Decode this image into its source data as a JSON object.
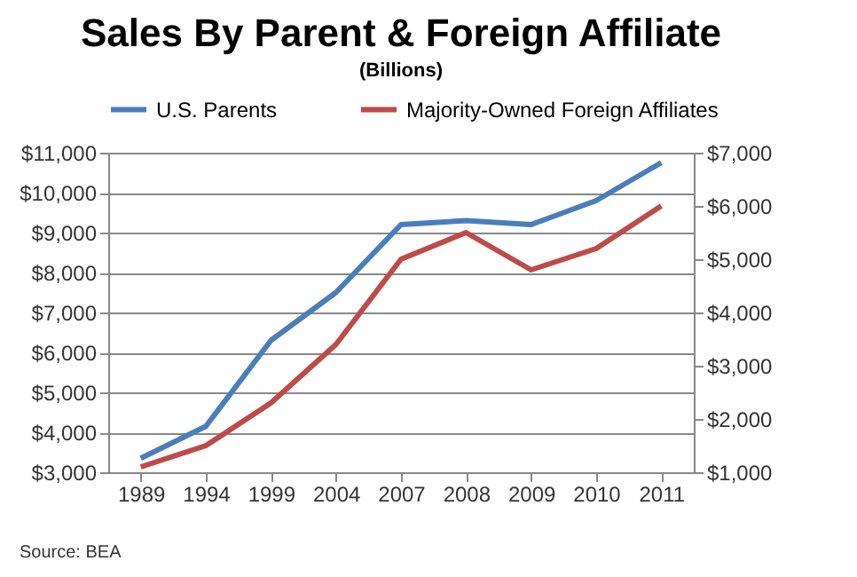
{
  "chart_data": {
    "type": "line",
    "title": "Sales By Parent & Foreign Affiliate",
    "subtitle": "(Billions)",
    "categories": [
      "1989",
      "1994",
      "1999",
      "2004",
      "2007",
      "2008",
      "2009",
      "2010",
      "2011"
    ],
    "series": [
      {
        "name": "U.S. Parents",
        "color": "#4a7ebb",
        "values": [
          3350,
          4150,
          6300,
          7500,
          9200,
          9300,
          9200,
          9800,
          10750
        ]
      },
      {
        "name": "Majority-Owned Foreign Affiliates",
        "color": "#be4b48",
        "axis": "y2",
        "values": [
          1100,
          1500,
          2300,
          3400,
          5000,
          5500,
          4800,
          5200,
          6000
        ]
      }
    ],
    "ylim": [
      3000,
      11000
    ],
    "yticks": [
      {
        "value": 3000,
        "label": "$3,000"
      },
      {
        "value": 4000,
        "label": "$4,000"
      },
      {
        "value": 5000,
        "label": "$5,000"
      },
      {
        "value": 6000,
        "label": "$6,000"
      },
      {
        "value": 7000,
        "label": "$7,000"
      },
      {
        "value": 8000,
        "label": "$8,000"
      },
      {
        "value": 9000,
        "label": "$9,000"
      },
      {
        "value": 10000,
        "label": "$10,000"
      },
      {
        "value": 11000,
        "label": "$11,000"
      }
    ],
    "y2lim": [
      1000,
      7000
    ],
    "y2ticks": [
      {
        "value": 1000,
        "label": "$1,000"
      },
      {
        "value": 2000,
        "label": "$2,000"
      },
      {
        "value": 3000,
        "label": "$3,000"
      },
      {
        "value": 4000,
        "label": "$4,000"
      },
      {
        "value": 5000,
        "label": "$5,000"
      },
      {
        "value": 6000,
        "label": "$6,000"
      },
      {
        "value": 7000,
        "label": "$7,000"
      }
    ],
    "grid": "y",
    "legend": "top",
    "marker": "none",
    "line_style": "solid",
    "annotations": [
      "Source:  BEA"
    ]
  }
}
